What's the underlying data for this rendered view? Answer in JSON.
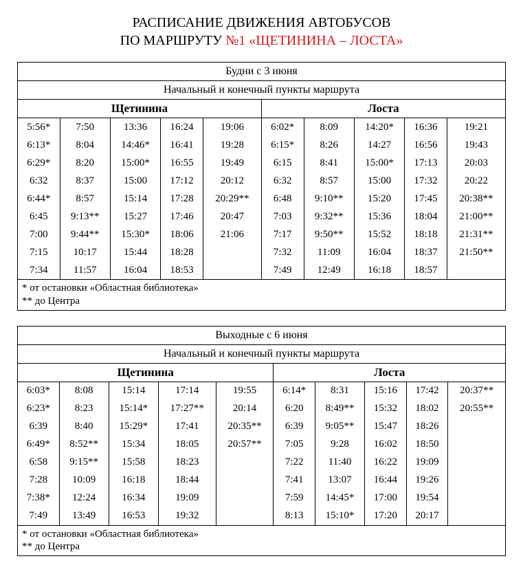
{
  "title_line1": "РАСПИСАНИЕ ДВИЖЕНИЯ АВТОБУСОВ",
  "title_line2_prefix": "ПО МАРШРУТУ ",
  "title_line2_route": "№1 «ЩЕТИНИНА – ЛОСТА»",
  "colors": {
    "route": "#d8171e",
    "text": "#000000",
    "border": "#000000",
    "bg": "#ffffff"
  },
  "tables": [
    {
      "period": "Будни с 3 июня",
      "subheader": "Начальный и конечный пункты маршрута",
      "stations": [
        "Щетинина",
        "Лоста"
      ],
      "cols_per_station": 5,
      "rows": [
        [
          "5:56*",
          "7:50",
          "13:36",
          "16:24",
          "19:06",
          "6:02*",
          "8:09",
          "14:20*",
          "16:36",
          "19:21"
        ],
        [
          "6:13*",
          "8:04",
          "14:46*",
          "16:41",
          "19:28",
          "6:15*",
          "8:26",
          "14:27",
          "16:56",
          "19:43"
        ],
        [
          "6:29*",
          "8:20",
          "15:00*",
          "16:55",
          "19:49",
          "6:15",
          "8:41",
          "15:00*",
          "17:13",
          "20:03"
        ],
        [
          "6:32",
          "8:37",
          "15:00",
          "17:12",
          "20:12",
          "6:32",
          "8:57",
          "15:00",
          "17:32",
          "20:22"
        ],
        [
          "6:44*",
          "8:57",
          "15:14",
          "17:28",
          "20:29**",
          "6:48",
          "9:10**",
          "15:20",
          "17:45",
          "20:38**"
        ],
        [
          "6:45",
          "9:13**",
          "15:27",
          "17:46",
          "20:47",
          "7:03",
          "9:32**",
          "15:36",
          "18:04",
          "21:00**"
        ],
        [
          "7:00",
          "9:44**",
          "15:30*",
          "18:06",
          "21:06",
          "7:17",
          "9:50**",
          "15:52",
          "18:18",
          "21:31**"
        ],
        [
          "7:15",
          "10:17",
          "15:44",
          "18:28",
          "",
          "7:32",
          "11:09",
          "16:04",
          "18:37",
          "21:50**"
        ],
        [
          "7:34",
          "11:57",
          "16:04",
          "18:53",
          "",
          "7:49",
          "12:49",
          "16:18",
          "18:57",
          ""
        ]
      ],
      "footnotes": [
        "* от остановки «Областная библиотека»",
        "** до Центра"
      ]
    },
    {
      "period": "Выходные с 6 июня",
      "subheader": "Начальный и конечный пункты маршрута",
      "stations": [
        "Щетинина",
        "Лоста"
      ],
      "cols_per_station": 5,
      "rows": [
        [
          "6:03*",
          "8:08",
          "15:14",
          "17:14",
          "19:55",
          "6:14*",
          "8:31",
          "15:16",
          "17:42",
          "20:37**"
        ],
        [
          "6:23*",
          "8:23",
          "15:14*",
          "17:27**",
          "20:14",
          "6:20",
          "8:49**",
          "15:32",
          "18:02",
          "20:55**"
        ],
        [
          "6:39",
          "8:40",
          "15:29*",
          "17:41",
          "20:35**",
          "6:39",
          "9:05**",
          "15:47",
          "18:26",
          ""
        ],
        [
          "6:49*",
          "8:52**",
          "15:34",
          "18:05",
          "20:57**",
          "7:05",
          "9:28",
          "16:02",
          "18:50",
          ""
        ],
        [
          "6:58",
          "9:15**",
          "15:58",
          "18:23",
          "",
          "7:22",
          "11:40",
          "16:22",
          "19:09",
          ""
        ],
        [
          "7:28",
          "10:09",
          "16:18",
          "18:44",
          "",
          "7:41",
          "13:07",
          "16:44",
          "19:26",
          ""
        ],
        [
          "7:38*",
          "12:24",
          "16:34",
          "19:09",
          "",
          "7:59",
          "14:45*",
          "17:00",
          "19:54",
          ""
        ],
        [
          "7:49",
          "13:49",
          "16:53",
          "19:32",
          "",
          "8:13",
          "15:10*",
          "17:20",
          "20:17",
          ""
        ]
      ],
      "footnotes": [
        "* от остановки «Областная библиотека»",
        "** до Центра"
      ]
    }
  ]
}
